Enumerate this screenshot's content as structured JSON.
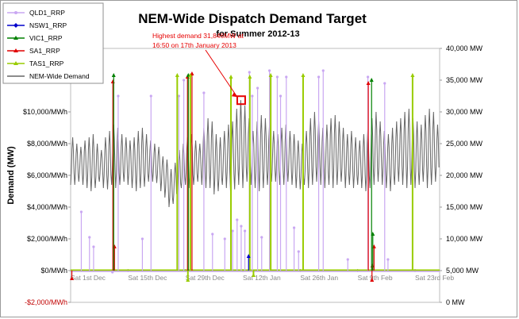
{
  "chart_data": {
    "type": "line",
    "title": "NEM-Wide Dispatch Demand Target",
    "subtitle": "for Summer 2012-13",
    "ylabel": "Demand (MW)",
    "left_axis": {
      "ylim": [
        -2000,
        14000
      ],
      "ticks": [
        {
          "value": -2000,
          "label": "-$2,000/MWh",
          "red": true
        },
        {
          "value": 0,
          "label": "$0/MWh",
          "red": false
        },
        {
          "value": 2000,
          "label": "$2,000/MWh",
          "red": false
        },
        {
          "value": 4000,
          "label": "$4,000/MWh",
          "red": false
        },
        {
          "value": 6000,
          "label": "$6,000/MWh",
          "red": false
        },
        {
          "value": 8000,
          "label": "$8,000/MWh",
          "red": false
        },
        {
          "value": 10000,
          "label": "$10,000/MWh",
          "red": false
        }
      ]
    },
    "right_axis": {
      "ylim": [
        0,
        40000
      ],
      "ticks": [
        {
          "value": 0,
          "label": "0 MW"
        },
        {
          "value": 5000,
          "label": "5,000 MW"
        },
        {
          "value": 10000,
          "label": "10,000 MW"
        },
        {
          "value": 15000,
          "label": "15,000 MW"
        },
        {
          "value": 20000,
          "label": "20,000 MW"
        },
        {
          "value": 25000,
          "label": "25,000 MW"
        },
        {
          "value": 30000,
          "label": "30,000 MW"
        },
        {
          "value": 35000,
          "label": "35,000 MW"
        },
        {
          "value": 40000,
          "label": "40,000 MW"
        }
      ]
    },
    "xlim": [
      0,
      90
    ],
    "x_ticks": [
      {
        "day": 0,
        "label": "Sat 1st Dec"
      },
      {
        "day": 14,
        "label": "Sat 15th Dec"
      },
      {
        "day": 28,
        "label": "Sat 29th Dec"
      },
      {
        "day": 42,
        "label": "Sat 12th Jan"
      },
      {
        "day": 56,
        "label": "Sat 26th Jan"
      },
      {
        "day": 70,
        "label": "Sat 9th Feb"
      },
      {
        "day": 84,
        "label": "Sat 23rd Feb"
      }
    ],
    "grid": false,
    "legend_position": "top-left",
    "series": [
      {
        "name": "QLD1_RRP",
        "color": "#c9a7f2",
        "marker": "circle",
        "axis": "left"
      },
      {
        "name": "NSW1_RRP",
        "color": "#0000cc",
        "marker": "diamond",
        "axis": "left"
      },
      {
        "name": "VIC1_RRP",
        "color": "#008000",
        "marker": "triangle",
        "axis": "left"
      },
      {
        "name": "SA1_RRP",
        "color": "#e00000",
        "marker": "triangle",
        "axis": "left"
      },
      {
        "name": "TAS1_RRP",
        "color": "#99cc00",
        "marker": "triangle",
        "axis": "left"
      },
      {
        "name": "NEM-Wide Demand",
        "color": "#666666",
        "marker": "none",
        "axis": "right"
      }
    ],
    "demand_profile": {
      "base_mw": 20500,
      "peaks_mw": [
        26000,
        25000,
        24500,
        25500,
        26000,
        26500,
        25000,
        24000,
        26000,
        27000,
        28000,
        27500,
        26500,
        26000,
        25500,
        26000,
        27000,
        27500,
        26500,
        25500,
        25000,
        24500,
        23000,
        22500,
        21000,
        22000,
        24000,
        25000,
        26000,
        26500,
        25500,
        25000,
        27500,
        29000,
        28500,
        26500,
        26000,
        27000,
        28000,
        28500,
        30500,
        31846,
        31000,
        29000,
        27000,
        28500,
        29500,
        29000,
        28000,
        27000,
        26500,
        27500,
        28000,
        27000,
        26500,
        25500,
        25000,
        27000,
        29000,
        30000,
        28500,
        27500,
        28000,
        29000,
        29500,
        28500,
        27500,
        26500,
        27000,
        26000,
        25500,
        26500,
        27500,
        29000,
        30000,
        28500,
        27000,
        26500,
        27500,
        28500,
        29000,
        30000,
        30500,
        29000,
        28500,
        28000,
        29500,
        30500,
        30000,
        28000
      ],
      "troughs_mw": [
        18500,
        18500,
        19000,
        18500,
        18000,
        17500,
        18000,
        19000,
        18000,
        17800,
        18500,
        18000,
        18500,
        19000,
        18500,
        18000,
        17500,
        18000,
        18200,
        19000,
        19000,
        18800,
        17500,
        16500,
        15000,
        15500,
        17000,
        18000,
        18500,
        18000,
        18500,
        19000,
        18500,
        18000,
        18000,
        17000,
        17500,
        18500,
        18000,
        17500,
        17800,
        18500,
        18000,
        19000,
        18500,
        18000,
        17500,
        18000,
        18500,
        19000,
        19000,
        18500,
        18500,
        19000,
        18500,
        18000,
        17800,
        18500,
        18000,
        18500,
        19000,
        18500,
        18000,
        18500,
        18000,
        18500,
        19000,
        18000,
        18500,
        18000,
        18500,
        18000,
        17500,
        18000,
        18500,
        19000,
        18500,
        18000,
        17500,
        18500,
        19000,
        18500,
        18000,
        18500,
        18000,
        18500,
        19000,
        18000,
        18500,
        19000
      ]
    },
    "price_spikes": [
      {
        "series": "QLD1_RRP",
        "day": 2.6,
        "value": 3700
      },
      {
        "series": "QLD1_RRP",
        "day": 4.6,
        "value": 2100
      },
      {
        "series": "QLD1_RRP",
        "day": 5.6,
        "value": 1500
      },
      {
        "series": "QLD1_RRP",
        "day": 11.6,
        "value": 11000
      },
      {
        "series": "QLD1_RRP",
        "day": 17.5,
        "value": 2000
      },
      {
        "series": "QLD1_RRP",
        "day": 19.6,
        "value": 11000
      },
      {
        "series": "QLD1_RRP",
        "day": 26.4,
        "value": 11000
      },
      {
        "series": "QLD1_RRP",
        "day": 27.6,
        "value": 12000
      },
      {
        "series": "QLD1_RRP",
        "day": 32.5,
        "value": 11200
      },
      {
        "series": "QLD1_RRP",
        "day": 34.6,
        "value": 2300
      },
      {
        "series": "QLD1_RRP",
        "day": 37.6,
        "value": 2000
      },
      {
        "series": "QLD1_RRP",
        "day": 39.5,
        "value": 2500
      },
      {
        "series": "QLD1_RRP",
        "day": 40.6,
        "value": 3200
      },
      {
        "series": "QLD1_RRP",
        "day": 41.6,
        "value": 2800
      },
      {
        "series": "QLD1_RRP",
        "day": 42.5,
        "value": 2500
      },
      {
        "series": "QLD1_RRP",
        "day": 43.6,
        "value": 12500
      },
      {
        "series": "QLD1_RRP",
        "day": 44.3,
        "value": 11000
      },
      {
        "series": "QLD1_RRP",
        "day": 45.6,
        "value": 11500
      },
      {
        "series": "QLD1_RRP",
        "day": 46.6,
        "value": 2100
      },
      {
        "series": "QLD1_RRP",
        "day": 48.5,
        "value": 12600
      },
      {
        "series": "QLD1_RRP",
        "day": 50.4,
        "value": 12200
      },
      {
        "series": "QLD1_RRP",
        "day": 51.2,
        "value": 11000
      },
      {
        "series": "QLD1_RRP",
        "day": 52.6,
        "value": 12200
      },
      {
        "series": "QLD1_RRP",
        "day": 54.5,
        "value": 2700
      },
      {
        "series": "QLD1_RRP",
        "day": 55.6,
        "value": 1200
      },
      {
        "series": "QLD1_RRP",
        "day": 60.5,
        "value": 12200
      },
      {
        "series": "QLD1_RRP",
        "day": 61.6,
        "value": 12600
      },
      {
        "series": "QLD1_RRP",
        "day": 67.6,
        "value": 700
      },
      {
        "series": "QLD1_RRP",
        "day": 72.5,
        "value": 12200
      },
      {
        "series": "QLD1_RRP",
        "day": 76.6,
        "value": 11800
      },
      {
        "series": "QLD1_RRP",
        "day": 77.4,
        "value": 700
      },
      {
        "series": "SA1_RRP",
        "day": 10.3,
        "value": 11900
      },
      {
        "series": "SA1_RRP",
        "day": 10.7,
        "value": 1500
      },
      {
        "series": "SA1_RRP",
        "day": 28.5,
        "value": 12200
      },
      {
        "series": "SA1_RRP",
        "day": 29.6,
        "value": 12400
      },
      {
        "series": "SA1_RRP",
        "day": 72.6,
        "value": 11800
      },
      {
        "series": "SA1_RRP",
        "day": 73.6,
        "value": 300
      },
      {
        "series": "SA1_RRP",
        "day": 74.0,
        "value": 1500
      },
      {
        "series": "VIC1_RRP",
        "day": 10.5,
        "value": 12300
      },
      {
        "series": "VIC1_RRP",
        "day": 28.7,
        "value": 12300
      },
      {
        "series": "VIC1_RRP",
        "day": 73.4,
        "value": 12000
      },
      {
        "series": "VIC1_RRP",
        "day": 73.7,
        "value": 2300
      },
      {
        "series": "TAS1_RRP",
        "day": 26.0,
        "value": 12300
      },
      {
        "series": "TAS1_RRP",
        "day": 29.2,
        "value": 12300
      },
      {
        "series": "TAS1_RRP",
        "day": 39.1,
        "value": 12200
      },
      {
        "series": "TAS1_RRP",
        "day": 43.7,
        "value": 12200
      },
      {
        "series": "TAS1_RRP",
        "day": 48.8,
        "value": 12300
      },
      {
        "series": "TAS1_RRP",
        "day": 56.7,
        "value": 12300
      },
      {
        "series": "TAS1_RRP",
        "day": 83.4,
        "value": 12300
      },
      {
        "series": "NSW1_RRP",
        "day": 43.4,
        "value": 900
      }
    ],
    "negative_spikes": [
      {
        "series": "SA1_RRP",
        "day": 0.3,
        "value": -500
      },
      {
        "series": "TAS1_RRP",
        "day": 28.6,
        "value": -600
      },
      {
        "series": "TAS1_RRP",
        "day": 44.6,
        "value": -300
      },
      {
        "series": "SA1_RRP",
        "day": 73.5,
        "value": -600
      },
      {
        "series": "QLD1_RRP",
        "day": 10.2,
        "value": -100
      }
    ],
    "annotation": {
      "lines": [
        "Highest demand 31,846MW at",
        "16:50 on 17th January 2013"
      ],
      "day": 41.6,
      "demand_mw": 31846
    }
  }
}
